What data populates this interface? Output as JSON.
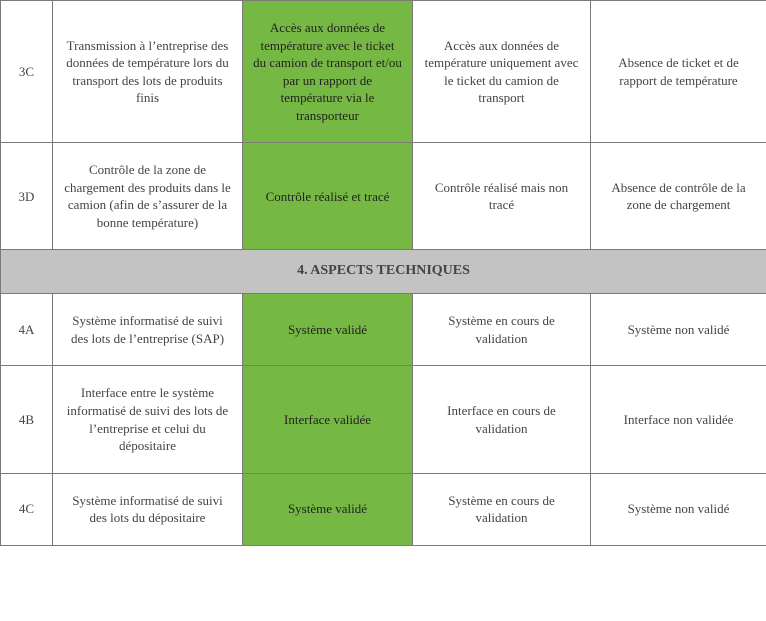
{
  "colors": {
    "highlight": "#76b844",
    "header_bg": "#c3c3c3",
    "border": "#7a7a7a",
    "text": "#3a3a3a"
  },
  "rows": {
    "r3c": {
      "code": "3C",
      "desc": "Transmission à l’entreprise des données de température lors du transport des lots de produits finis",
      "opt1": "Accès aux données de température avec le ticket du camion de transport et/ou par un rapport de température via le transporteur",
      "opt2": "Accès aux données de température uniquement avec le ticket du camion de transport",
      "opt3": "Absence de ticket et de rapport de température"
    },
    "r3d": {
      "code": "3D",
      "desc": "Contrôle de la zone de chargement des produits dans le camion (afin de s’assurer de la bonne température)",
      "opt1": "Contrôle réalisé et tracé",
      "opt2": "Contrôle réalisé mais non tracé",
      "opt3": "Absence de contrôle de la zone de chargement"
    },
    "section4": "4.    ASPECTS TECHNIQUES",
    "r4a": {
      "code": "4A",
      "desc": "Système informatisé de suivi des lots de l’entreprise (SAP)",
      "opt1": "Système validé",
      "opt2": "Système en cours de validation",
      "opt3": "Système non validé"
    },
    "r4b": {
      "code": "4B",
      "desc": "Interface entre le système informatisé de suivi des lots de l’entreprise et celui du dépositaire",
      "opt1": "Interface validée",
      "opt2": "Interface en cours de validation",
      "opt3": "Interface non validée"
    },
    "r4c": {
      "code": "4C",
      "desc": "Système informatisé de suivi des lots du dépositaire",
      "opt1": "Système validé",
      "opt2": "Système en cours de validation",
      "opt3": "Système non validé"
    }
  }
}
